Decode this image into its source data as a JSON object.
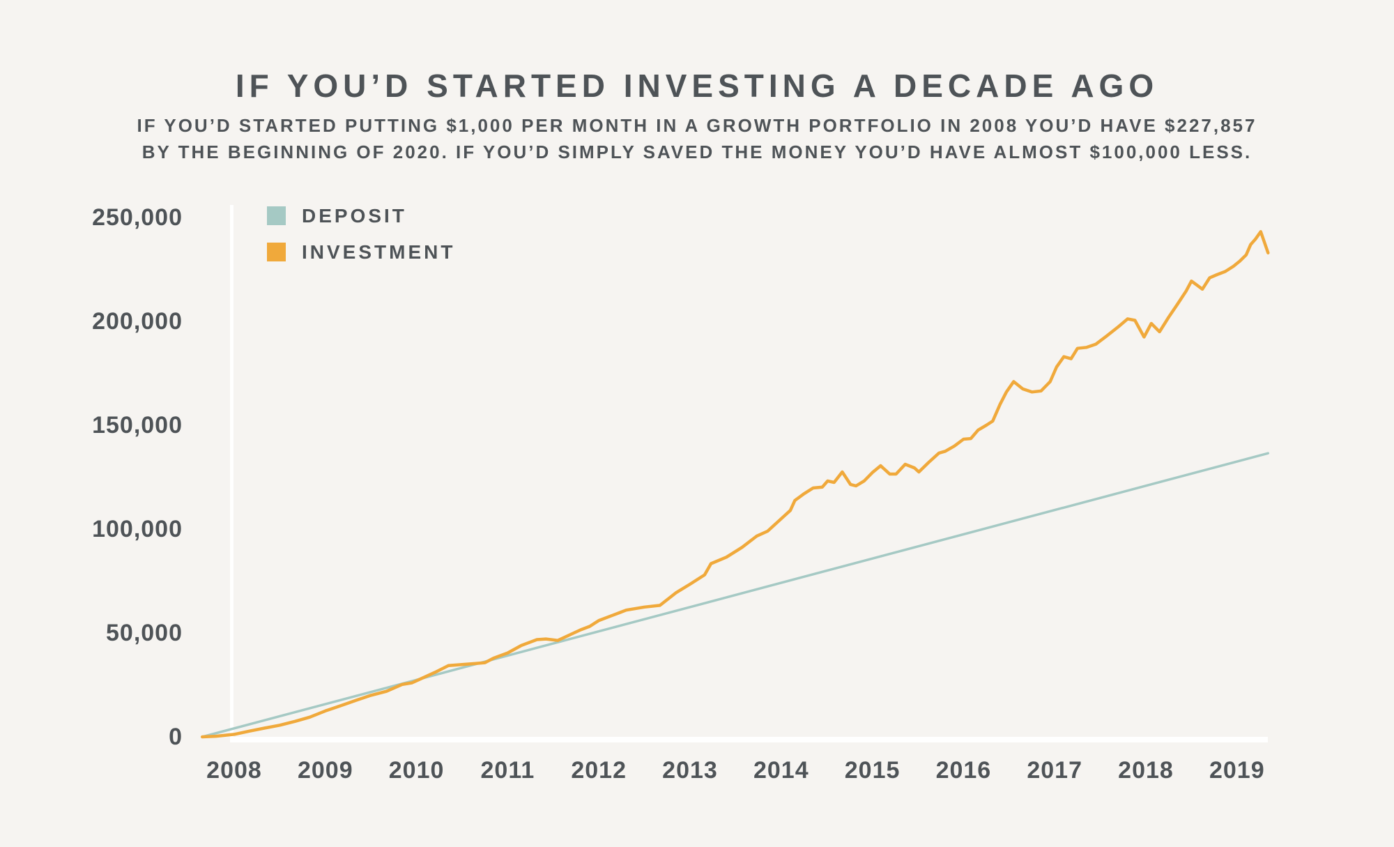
{
  "page": {
    "background": "#F6F4F1",
    "text_color": "#4E5357"
  },
  "header": {
    "title": "IF YOU’D STARTED INVESTING A DECADE AGO",
    "subtitle_line1": "IF YOU’D STARTED PUTTING $1,000 PER MONTH IN A GROWTH PORTFOLIO IN 2008 YOU’D HAVE $227,857",
    "subtitle_line2": "BY THE BEGINNING OF 2020. IF YOU’D SIMPLY SAVED THE MONEY YOU’D HAVE ALMOST $100,000 LESS."
  },
  "chart_data": {
    "type": "line",
    "title": "IF YOU’D STARTED INVESTING A DECADE AGO",
    "xlabel": "",
    "ylabel": "",
    "grid": false,
    "legend_position": "top-left",
    "axis_color": "#FFFFFF",
    "x_range": [
      2007.65,
      2019.6
    ],
    "y_range": [
      0,
      250000
    ],
    "x_ticks": [
      2008,
      2009,
      2010,
      2011,
      2012,
      2013,
      2014,
      2015,
      2016,
      2017,
      2018,
      2019
    ],
    "x_tick_labels": [
      "2008",
      "2009",
      "2010",
      "2011",
      "2012",
      "2013",
      "2014",
      "2015",
      "2016",
      "2017",
      "2018",
      "2019"
    ],
    "y_ticks": [
      0,
      50000,
      100000,
      150000,
      200000,
      250000
    ],
    "y_tick_labels": [
      "0",
      "50,000",
      "100,000",
      "150,000",
      "200,000",
      "250,000"
    ],
    "series": [
      {
        "name": "DEPOSIT",
        "color": "#A5C9C4",
        "stroke_width": 3.5,
        "points": [
          [
            2007.65,
            0
          ],
          [
            2019.34,
            136500
          ]
        ]
      },
      {
        "name": "INVESTMENT",
        "color": "#F0A93B",
        "stroke_width": 4.5,
        "points": [
          [
            2007.65,
            0
          ],
          [
            2007.8,
            300
          ],
          [
            2008.0,
            1200
          ],
          [
            2008.17,
            2800
          ],
          [
            2008.33,
            4200
          ],
          [
            2008.5,
            5600
          ],
          [
            2008.67,
            7500
          ],
          [
            2008.83,
            9500
          ],
          [
            2009.0,
            12500
          ],
          [
            2009.17,
            15000
          ],
          [
            2009.33,
            17500
          ],
          [
            2009.5,
            20000
          ],
          [
            2009.67,
            21900
          ],
          [
            2009.84,
            25200
          ],
          [
            2009.95,
            26000
          ],
          [
            2010.05,
            28000
          ],
          [
            2010.2,
            31000
          ],
          [
            2010.35,
            34300
          ],
          [
            2010.5,
            34800
          ],
          [
            2010.65,
            35300
          ],
          [
            2010.75,
            35700
          ],
          [
            2010.85,
            38000
          ],
          [
            2011.0,
            40400
          ],
          [
            2011.15,
            44000
          ],
          [
            2011.32,
            46800
          ],
          [
            2011.42,
            47100
          ],
          [
            2011.55,
            46400
          ],
          [
            2011.7,
            49500
          ],
          [
            2011.8,
            51500
          ],
          [
            2011.9,
            53200
          ],
          [
            2012.0,
            56000
          ],
          [
            2012.15,
            58500
          ],
          [
            2012.3,
            61000
          ],
          [
            2012.5,
            62500
          ],
          [
            2012.67,
            63300
          ],
          [
            2012.85,
            69500
          ],
          [
            2013.0,
            73500
          ],
          [
            2013.16,
            78000
          ],
          [
            2013.23,
            83400
          ],
          [
            2013.4,
            86500
          ],
          [
            2013.57,
            91200
          ],
          [
            2013.73,
            96600
          ],
          [
            2013.85,
            99000
          ],
          [
            2014.0,
            105000
          ],
          [
            2014.1,
            109000
          ],
          [
            2014.15,
            113800
          ],
          [
            2014.25,
            117000
          ],
          [
            2014.35,
            119800
          ],
          [
            2014.45,
            120200
          ],
          [
            2014.51,
            123200
          ],
          [
            2014.58,
            122500
          ],
          [
            2014.67,
            127500
          ],
          [
            2014.76,
            121500
          ],
          [
            2014.82,
            120800
          ],
          [
            2014.91,
            123200
          ],
          [
            2015.0,
            127200
          ],
          [
            2015.09,
            130500
          ],
          [
            2015.19,
            126500
          ],
          [
            2015.26,
            126500
          ],
          [
            2015.36,
            131200
          ],
          [
            2015.46,
            129500
          ],
          [
            2015.51,
            127500
          ],
          [
            2015.62,
            132200
          ],
          [
            2015.73,
            136600
          ],
          [
            2015.8,
            137500
          ],
          [
            2015.9,
            140000
          ],
          [
            2016.0,
            143300
          ],
          [
            2016.08,
            143600
          ],
          [
            2016.16,
            147700
          ],
          [
            2016.25,
            150000
          ],
          [
            2016.32,
            152000
          ],
          [
            2016.4,
            160000
          ],
          [
            2016.47,
            166000
          ],
          [
            2016.55,
            171000
          ],
          [
            2016.65,
            167500
          ],
          [
            2016.75,
            166000
          ],
          [
            2016.85,
            166500
          ],
          [
            2016.95,
            171000
          ],
          [
            2017.02,
            178000
          ],
          [
            2017.1,
            183000
          ],
          [
            2017.18,
            182000
          ],
          [
            2017.25,
            187000
          ],
          [
            2017.35,
            187500
          ],
          [
            2017.45,
            189000
          ],
          [
            2017.57,
            193000
          ],
          [
            2017.7,
            197500
          ],
          [
            2017.8,
            201200
          ],
          [
            2017.88,
            200500
          ],
          [
            2017.98,
            192500
          ],
          [
            2018.06,
            199000
          ],
          [
            2018.15,
            195000
          ],
          [
            2018.25,
            202000
          ],
          [
            2018.35,
            208500
          ],
          [
            2018.44,
            214500
          ],
          [
            2018.5,
            219400
          ],
          [
            2018.56,
            217500
          ],
          [
            2018.62,
            215500
          ],
          [
            2018.7,
            221000
          ],
          [
            2018.78,
            222500
          ],
          [
            2018.87,
            224000
          ],
          [
            2018.96,
            226500
          ],
          [
            2019.03,
            229000
          ],
          [
            2019.1,
            232000
          ],
          [
            2019.15,
            237000
          ],
          [
            2019.2,
            239500
          ],
          [
            2019.26,
            243200
          ],
          [
            2019.34,
            233000
          ]
        ]
      }
    ]
  }
}
